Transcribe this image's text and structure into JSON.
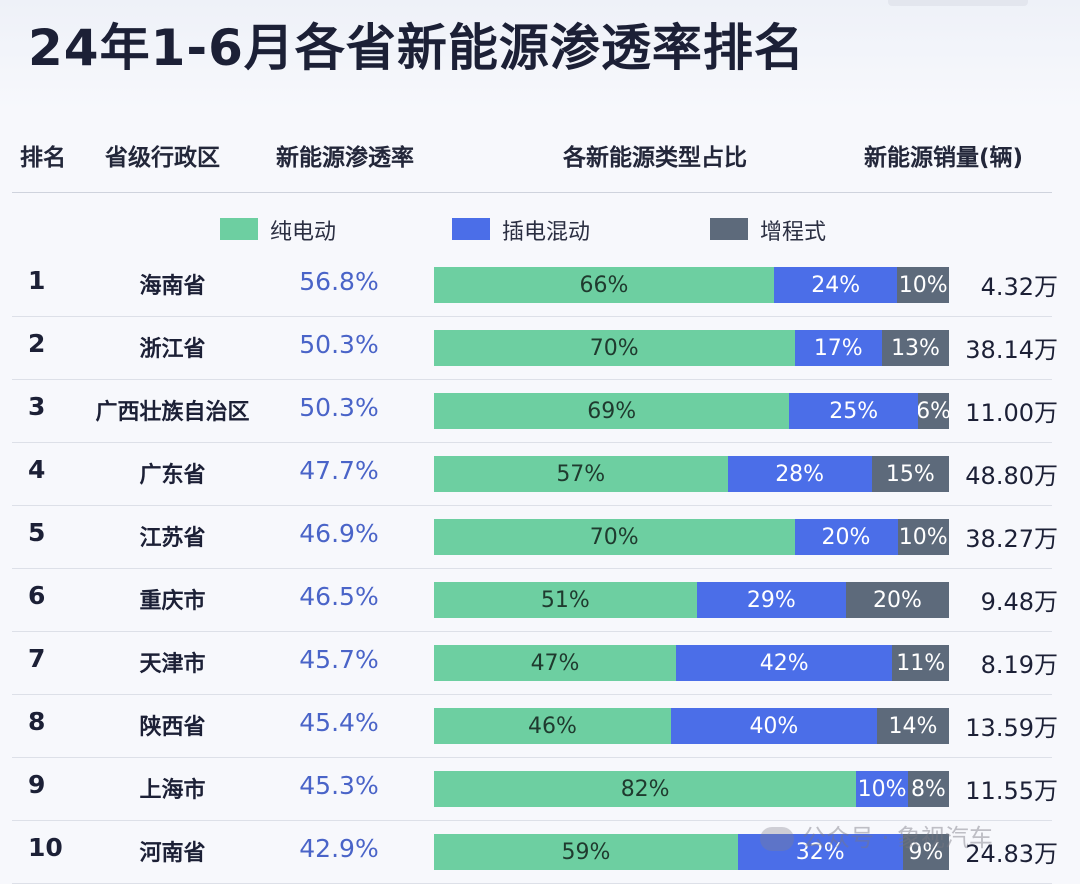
{
  "title": "24年1-6月各省新能源渗透率排名",
  "headers": {
    "rank": "排名",
    "region": "省级行政区",
    "rate": "新能源渗透率",
    "mix": "各新能源类型占比",
    "sales": "新能源销量(辆)"
  },
  "legend": [
    {
      "label": "纯电动",
      "color": "#6dcfa1"
    },
    {
      "label": "插电混动",
      "color": "#4b6ee8"
    },
    {
      "label": "增程式",
      "color": "#5d6a7b"
    }
  ],
  "watermark": "公众号 · 象视汽车",
  "chart_data": {
    "type": "bar",
    "stacked": true,
    "orientation": "horizontal",
    "title": "24年1-6月各省新能源渗透率排名",
    "categories": [
      "海南省",
      "浙江省",
      "广西壮族自治区",
      "广东省",
      "江苏省",
      "重庆市",
      "天津市",
      "陕西省",
      "上海市",
      "河南省"
    ],
    "ranks": [
      "1",
      "2",
      "3",
      "4",
      "5",
      "6",
      "7",
      "8",
      "9",
      "10"
    ],
    "penetration": [
      "56.8%",
      "50.3%",
      "50.3%",
      "47.7%",
      "46.9%",
      "46.5%",
      "45.7%",
      "45.4%",
      "45.3%",
      "42.9%"
    ],
    "sales": [
      "4.32万",
      "38.14万",
      "11.00万",
      "48.80万",
      "38.27万",
      "9.48万",
      "8.19万",
      "13.59万",
      "11.55万",
      "24.83万"
    ],
    "series": [
      {
        "name": "纯电动",
        "color": "#6dcfa1",
        "values": [
          66,
          70,
          69,
          57,
          70,
          51,
          47,
          46,
          82,
          59
        ]
      },
      {
        "name": "插电混动",
        "color": "#4b6ee8",
        "values": [
          24,
          17,
          25,
          28,
          20,
          29,
          42,
          40,
          10,
          32
        ]
      },
      {
        "name": "增程式",
        "color": "#5d6a7b",
        "values": [
          10,
          13,
          6,
          15,
          10,
          20,
          11,
          14,
          8,
          9
        ]
      }
    ]
  }
}
